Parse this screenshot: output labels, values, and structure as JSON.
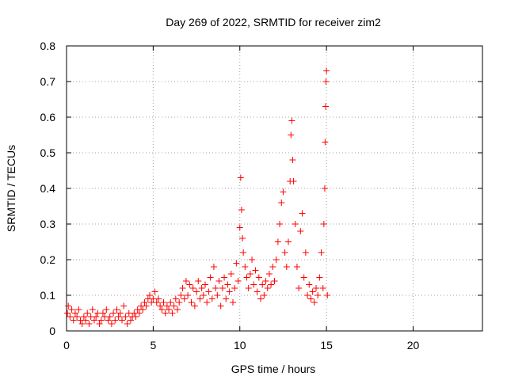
{
  "chart_data": {
    "type": "scatter",
    "title": "Day 269 of 2022, SRMTID for receiver zim2",
    "xlabel": "GPS time / hours",
    "ylabel": "SRMTID / TECUs",
    "xlim": [
      0,
      24
    ],
    "ylim": [
      0,
      0.8
    ],
    "xticks": [
      0,
      5,
      10,
      15,
      20
    ],
    "yticks": [
      0,
      0.1,
      0.2,
      0.3,
      0.4,
      0.5,
      0.6,
      0.7,
      0.8
    ],
    "grid": true,
    "marker": "plus",
    "color": "#ff0000",
    "series": [
      {
        "name": "SRMTID",
        "points": [
          [
            0.05,
            0.05
          ],
          [
            0.1,
            0.07
          ],
          [
            0.2,
            0.04
          ],
          [
            0.3,
            0.06
          ],
          [
            0.4,
            0.03
          ],
          [
            0.5,
            0.05
          ],
          [
            0.6,
            0.04
          ],
          [
            0.7,
            0.06
          ],
          [
            0.8,
            0.03
          ],
          [
            0.9,
            0.02
          ],
          [
            1.0,
            0.04
          ],
          [
            1.1,
            0.03
          ],
          [
            1.2,
            0.05
          ],
          [
            1.3,
            0.02
          ],
          [
            1.4,
            0.04
          ],
          [
            1.5,
            0.06
          ],
          [
            1.6,
            0.03
          ],
          [
            1.7,
            0.04
          ],
          [
            1.8,
            0.05
          ],
          [
            1.9,
            0.02
          ],
          [
            2.0,
            0.03
          ],
          [
            2.1,
            0.05
          ],
          [
            2.2,
            0.04
          ],
          [
            2.3,
            0.06
          ],
          [
            2.4,
            0.03
          ],
          [
            2.5,
            0.04
          ],
          [
            2.6,
            0.02
          ],
          [
            2.7,
            0.05
          ],
          [
            2.8,
            0.03
          ],
          [
            2.9,
            0.06
          ],
          [
            3.0,
            0.04
          ],
          [
            3.1,
            0.05
          ],
          [
            3.2,
            0.03
          ],
          [
            3.3,
            0.07
          ],
          [
            3.4,
            0.04
          ],
          [
            3.5,
            0.02
          ],
          [
            3.6,
            0.05
          ],
          [
            3.7,
            0.03
          ],
          [
            3.8,
            0.04
          ],
          [
            3.9,
            0.05
          ],
          [
            4.0,
            0.04
          ],
          [
            4.1,
            0.06
          ],
          [
            4.2,
            0.05
          ],
          [
            4.3,
            0.07
          ],
          [
            4.4,
            0.06
          ],
          [
            4.5,
            0.08
          ],
          [
            4.6,
            0.07
          ],
          [
            4.7,
            0.09
          ],
          [
            4.8,
            0.1
          ],
          [
            4.9,
            0.08
          ],
          [
            5.0,
            0.09
          ],
          [
            5.1,
            0.11
          ],
          [
            5.2,
            0.08
          ],
          [
            5.3,
            0.09
          ],
          [
            5.4,
            0.07
          ],
          [
            5.5,
            0.06
          ],
          [
            5.6,
            0.08
          ],
          [
            5.7,
            0.05
          ],
          [
            5.8,
            0.07
          ],
          [
            5.9,
            0.06
          ],
          [
            6.0,
            0.08
          ],
          [
            6.1,
            0.05
          ],
          [
            6.2,
            0.07
          ],
          [
            6.3,
            0.09
          ],
          [
            6.4,
            0.06
          ],
          [
            6.5,
            0.08
          ],
          [
            6.6,
            0.1
          ],
          [
            6.7,
            0.12
          ],
          [
            6.8,
            0.09
          ],
          [
            6.9,
            0.14
          ],
          [
            7.0,
            0.1
          ],
          [
            7.1,
            0.13
          ],
          [
            7.2,
            0.08
          ],
          [
            7.3,
            0.12
          ],
          [
            7.4,
            0.07
          ],
          [
            7.5,
            0.11
          ],
          [
            7.6,
            0.14
          ],
          [
            7.7,
            0.09
          ],
          [
            7.8,
            0.12
          ],
          [
            7.9,
            0.1
          ],
          [
            8.0,
            0.13
          ],
          [
            8.1,
            0.08
          ],
          [
            8.2,
            0.11
          ],
          [
            8.3,
            0.15
          ],
          [
            8.4,
            0.09
          ],
          [
            8.5,
            0.18
          ],
          [
            8.6,
            0.12
          ],
          [
            8.7,
            0.1
          ],
          [
            8.8,
            0.14
          ],
          [
            8.9,
            0.07
          ],
          [
            9.0,
            0.12
          ],
          [
            9.1,
            0.15
          ],
          [
            9.2,
            0.09
          ],
          [
            9.3,
            0.13
          ],
          [
            9.4,
            0.11
          ],
          [
            9.5,
            0.16
          ],
          [
            9.6,
            0.08
          ],
          [
            9.7,
            0.12
          ],
          [
            9.8,
            0.19
          ],
          [
            9.9,
            0.14
          ],
          [
            10.0,
            0.29
          ],
          [
            10.05,
            0.43
          ],
          [
            10.1,
            0.34
          ],
          [
            10.15,
            0.26
          ],
          [
            10.2,
            0.22
          ],
          [
            10.3,
            0.18
          ],
          [
            10.4,
            0.15
          ],
          [
            10.5,
            0.12
          ],
          [
            10.6,
            0.16
          ],
          [
            10.7,
            0.2
          ],
          [
            10.8,
            0.13
          ],
          [
            10.9,
            0.17
          ],
          [
            11.0,
            0.11
          ],
          [
            11.1,
            0.15
          ],
          [
            11.2,
            0.09
          ],
          [
            11.3,
            0.13
          ],
          [
            11.4,
            0.1
          ],
          [
            11.5,
            0.14
          ],
          [
            11.6,
            0.12
          ],
          [
            11.7,
            0.16
          ],
          [
            11.8,
            0.13
          ],
          [
            11.9,
            0.18
          ],
          [
            12.0,
            0.14
          ],
          [
            12.1,
            0.2
          ],
          [
            12.2,
            0.25
          ],
          [
            12.3,
            0.3
          ],
          [
            12.4,
            0.36
          ],
          [
            12.5,
            0.39
          ],
          [
            12.6,
            0.22
          ],
          [
            12.7,
            0.18
          ],
          [
            12.8,
            0.25
          ],
          [
            12.9,
            0.42
          ],
          [
            12.95,
            0.55
          ],
          [
            13.0,
            0.59
          ],
          [
            13.05,
            0.48
          ],
          [
            13.1,
            0.42
          ],
          [
            13.2,
            0.3
          ],
          [
            13.3,
            0.18
          ],
          [
            13.4,
            0.12
          ],
          [
            13.5,
            0.28
          ],
          [
            13.6,
            0.33
          ],
          [
            13.7,
            0.15
          ],
          [
            13.8,
            0.22
          ],
          [
            13.9,
            0.1
          ],
          [
            14.0,
            0.13
          ],
          [
            14.1,
            0.09
          ],
          [
            14.2,
            0.11
          ],
          [
            14.3,
            0.08
          ],
          [
            14.4,
            0.12
          ],
          [
            14.5,
            0.1
          ],
          [
            14.6,
            0.15
          ],
          [
            14.7,
            0.22
          ],
          [
            14.8,
            0.12
          ],
          [
            14.85,
            0.3
          ],
          [
            14.9,
            0.4
          ],
          [
            14.92,
            0.53
          ],
          [
            14.95,
            0.63
          ],
          [
            14.97,
            0.7
          ],
          [
            15.0,
            0.73
          ],
          [
            15.05,
            0.1
          ]
        ]
      }
    ]
  }
}
